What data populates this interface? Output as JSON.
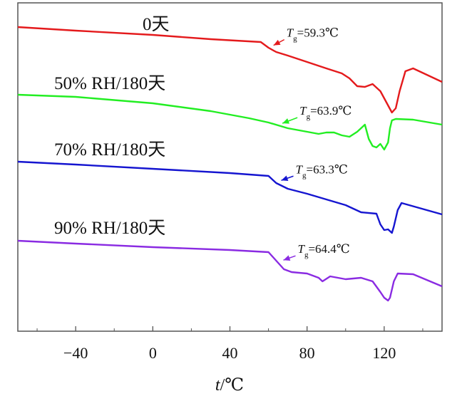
{
  "chart_data": {
    "type": "line",
    "xlabel": "t/℃",
    "xlim": [
      -70,
      150
    ],
    "xticks": [
      "−40",
      "0",
      "40",
      "80",
      "120"
    ],
    "xtick_values": [
      -40,
      0,
      40,
      80,
      120
    ],
    "grid": false,
    "series": [
      {
        "name": "0天",
        "color": "#e41a1c",
        "tg_label": "T",
        "tg_sub": "g",
        "tg_value": "=59.3℃",
        "tg_x": 59.3,
        "points": [
          [
            -70,
            38
          ],
          [
            -40,
            43
          ],
          [
            0,
            49
          ],
          [
            30,
            55
          ],
          [
            56,
            59
          ],
          [
            60,
            67
          ],
          [
            64,
            73
          ],
          [
            70,
            78
          ],
          [
            80,
            87
          ],
          [
            90,
            96
          ],
          [
            98,
            103
          ],
          [
            102,
            110
          ],
          [
            106,
            121
          ],
          [
            110,
            122
          ],
          [
            114,
            118
          ],
          [
            118,
            128
          ],
          [
            122,
            148
          ],
          [
            124,
            158
          ],
          [
            126,
            152
          ],
          [
            128,
            128
          ],
          [
            131,
            100
          ],
          [
            135,
            96
          ],
          [
            150,
            115
          ]
        ]
      },
      {
        "name": "50% RH/180天",
        "color": "#22ee22",
        "tg_label": "T",
        "tg_sub": "g",
        "tg_value": "=63.9℃",
        "tg_x": 63.9,
        "points": [
          [
            -70,
            133
          ],
          [
            -40,
            136
          ],
          [
            0,
            145
          ],
          [
            30,
            156
          ],
          [
            50,
            166
          ],
          [
            60,
            172
          ],
          [
            70,
            180
          ],
          [
            80,
            185
          ],
          [
            86,
            188
          ],
          [
            90,
            186
          ],
          [
            94,
            186
          ],
          [
            98,
            190
          ],
          [
            102,
            192
          ],
          [
            106,
            185
          ],
          [
            110,
            175
          ],
          [
            112,
            195
          ],
          [
            114,
            205
          ],
          [
            116,
            207
          ],
          [
            118,
            202
          ],
          [
            120,
            210
          ],
          [
            122,
            200
          ],
          [
            123,
            180
          ],
          [
            124,
            169
          ],
          [
            126,
            167
          ],
          [
            135,
            168
          ],
          [
            150,
            175
          ]
        ]
      },
      {
        "name": "70% RH/180天",
        "color": "#1515d0",
        "tg_label": "T",
        "tg_sub": "g",
        "tg_value": "=63.3℃",
        "tg_x": 63.3,
        "points": [
          [
            -70,
            227
          ],
          [
            -40,
            231
          ],
          [
            0,
            237
          ],
          [
            40,
            243
          ],
          [
            60,
            247
          ],
          [
            64,
            257
          ],
          [
            70,
            265
          ],
          [
            80,
            272
          ],
          [
            90,
            280
          ],
          [
            100,
            288
          ],
          [
            108,
            298
          ],
          [
            116,
            300
          ],
          [
            118,
            315
          ],
          [
            120,
            323
          ],
          [
            122,
            322
          ],
          [
            124,
            327
          ],
          [
            125,
            318
          ],
          [
            127,
            295
          ],
          [
            129,
            285
          ],
          [
            150,
            301
          ]
        ]
      },
      {
        "name": "90% RH/180天",
        "color": "#8a2be2",
        "tg_label": "T",
        "tg_sub": "g",
        "tg_value": "=64.4℃",
        "tg_x": 64.4,
        "points": [
          [
            -70,
            338
          ],
          [
            -40,
            342
          ],
          [
            0,
            347
          ],
          [
            40,
            351
          ],
          [
            60,
            354
          ],
          [
            64,
            366
          ],
          [
            68,
            378
          ],
          [
            72,
            382
          ],
          [
            80,
            384
          ],
          [
            86,
            390
          ],
          [
            88,
            395
          ],
          [
            92,
            388
          ],
          [
            100,
            392
          ],
          [
            108,
            390
          ],
          [
            114,
            395
          ],
          [
            118,
            410
          ],
          [
            120,
            418
          ],
          [
            122,
            422
          ],
          [
            123,
            418
          ],
          [
            125,
            395
          ],
          [
            127,
            384
          ],
          [
            135,
            385
          ],
          [
            150,
            402
          ]
        ]
      }
    ]
  }
}
